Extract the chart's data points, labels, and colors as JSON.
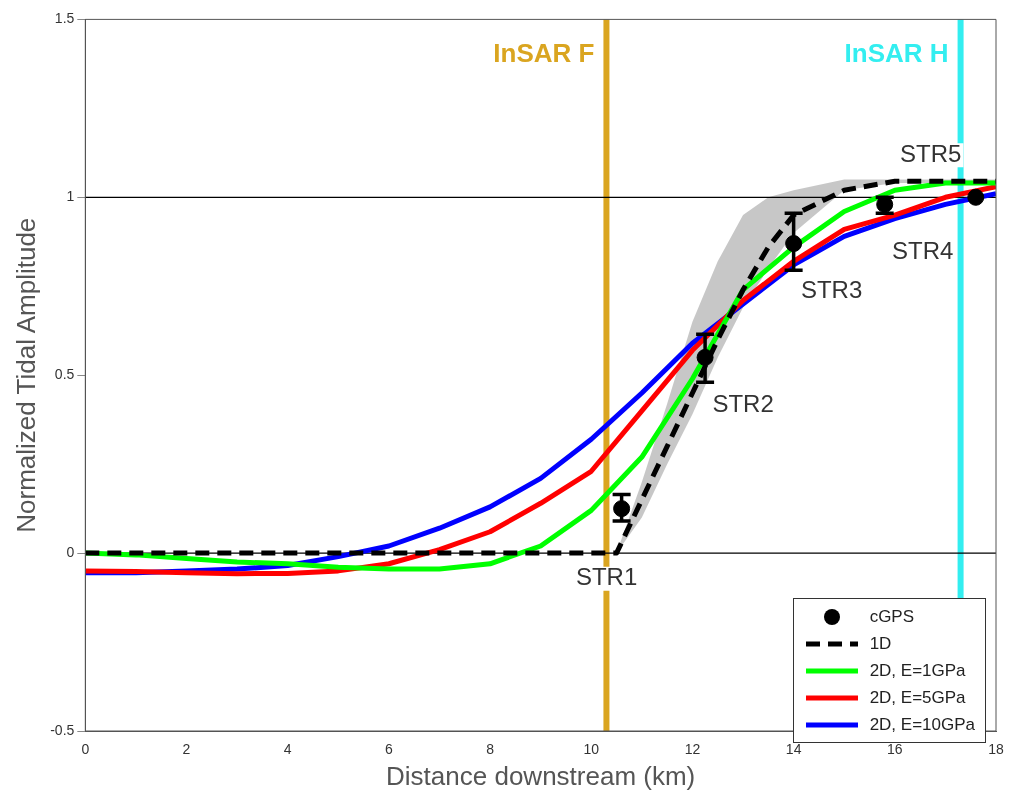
{
  "chart_data": {
    "type": "line",
    "xlabel": "Distance downstream (km)",
    "ylabel": "Normalized Tidal Amplitude",
    "xlim": [
      0,
      18
    ],
    "xticks": [
      0,
      2,
      4,
      6,
      8,
      10,
      12,
      14,
      16,
      18
    ],
    "ylim": [
      -0.5,
      1.5
    ],
    "yticks": [
      -0.5,
      0,
      0.5,
      1,
      1.5
    ],
    "grid": false,
    "legend": "bottom right",
    "series": [
      {
        "name": "cGPS",
        "type": "scatter",
        "marker": "circle",
        "color": "#000000",
        "x": [
          10.6,
          12.25,
          14.0,
          15.8,
          17.6
        ],
        "values": [
          0.125,
          0.55,
          0.87,
          0.98,
          1.0
        ],
        "errors": [
          [
            0.09,
            0.165
          ],
          [
            0.48,
            0.615
          ],
          [
            0.795,
            0.955
          ],
          [
            0.955,
            1.0
          ],
          null
        ]
      },
      {
        "name": "1D",
        "line_style": "dashed",
        "color": "#000000",
        "x": [
          0,
          10.5,
          11,
          11.5,
          12,
          12.5,
          13,
          13.5,
          14,
          15,
          16,
          18
        ],
        "values": [
          0,
          0,
          0.15,
          0.3,
          0.45,
          0.6,
          0.74,
          0.86,
          0.95,
          1.02,
          1.045,
          1.045
        ],
        "lower": [
          0,
          0,
          0.1,
          0.25,
          0.39,
          0.55,
          0.69,
          0.8,
          0.9,
          1.02,
          1.04,
          1.04
        ],
        "upper": [
          0,
          0,
          0.2,
          0.42,
          0.65,
          0.82,
          0.95,
          1.0,
          1.02,
          1.05,
          1.05,
          1.05
        ]
      },
      {
        "name": "2D, E=1GPa",
        "line_style": "solid",
        "color": "#00ff00",
        "x": [
          0,
          1,
          2,
          3,
          4,
          5,
          6,
          7,
          8,
          9,
          10,
          11,
          12,
          13,
          14,
          15,
          16,
          17,
          18
        ],
        "values": [
          0,
          -0.005,
          -0.015,
          -0.025,
          -0.03,
          -0.04,
          -0.045,
          -0.045,
          -0.03,
          0.02,
          0.12,
          0.27,
          0.49,
          0.74,
          0.86,
          0.96,
          1.02,
          1.04,
          1.04
        ]
      },
      {
        "name": "2D, E=5GPa",
        "line_style": "solid",
        "color": "#ff0000",
        "x": [
          0,
          1,
          2,
          3,
          4,
          5,
          6,
          7,
          8,
          9,
          10,
          11,
          12,
          13,
          14,
          15,
          16,
          17,
          18
        ],
        "values": [
          -0.05,
          -0.052,
          -0.055,
          -0.058,
          -0.057,
          -0.05,
          -0.03,
          0.01,
          0.06,
          0.14,
          0.23,
          0.4,
          0.57,
          0.71,
          0.82,
          0.91,
          0.95,
          1.0,
          1.03
        ]
      },
      {
        "name": "2D, E=10GPa",
        "line_style": "solid",
        "color": "#0000ff",
        "x": [
          0,
          1,
          2,
          3,
          4,
          5,
          6,
          7,
          8,
          9,
          10,
          11,
          12,
          13,
          14,
          15,
          16,
          17,
          18
        ],
        "values": [
          -0.055,
          -0.055,
          -0.05,
          -0.045,
          -0.035,
          -0.01,
          0.02,
          0.07,
          0.13,
          0.21,
          0.32,
          0.45,
          0.59,
          0.7,
          0.81,
          0.89,
          0.94,
          0.98,
          1.01
        ]
      }
    ],
    "ref_lines": [
      {
        "axis": "x",
        "value": 10.3,
        "label": "InSAR F",
        "color": "#daa520"
      },
      {
        "axis": "x",
        "value": 17.3,
        "label": "InSAR H",
        "color": "#33eef0"
      },
      {
        "axis": "y",
        "value": 0,
        "color": "#000000"
      },
      {
        "axis": "y",
        "value": 1,
        "color": "#000000"
      }
    ],
    "annotations": [
      {
        "text": "STR1",
        "x": 10.6,
        "y": 0.125
      },
      {
        "text": "STR2",
        "x": 12.25,
        "y": 0.55
      },
      {
        "text": "STR3",
        "x": 14.0,
        "y": 0.87
      },
      {
        "text": "STR4",
        "x": 15.8,
        "y": 0.98
      },
      {
        "text": "STR5",
        "x": 17.6,
        "y": 1.0
      }
    ]
  }
}
